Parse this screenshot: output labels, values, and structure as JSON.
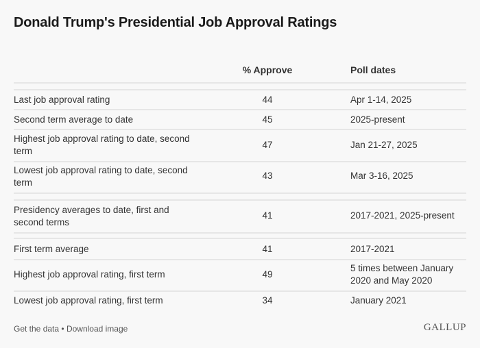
{
  "title": "Donald Trump's Presidential Job Approval Ratings",
  "headers": {
    "approve": "% Approve",
    "dates": "Poll dates"
  },
  "chart_data": {
    "type": "table",
    "columns": [
      "",
      "% Approve",
      "Poll dates"
    ],
    "rows": [
      {
        "label": "Last job approval rating",
        "value": "44",
        "dates": "Apr 1-14, 2025"
      },
      {
        "label": "Second term average to date",
        "value": "45",
        "dates": "2025-present"
      },
      {
        "label": "Highest job approval rating to date, second term",
        "value": "47",
        "dates": "Jan 21-27, 2025"
      },
      {
        "label": "Lowest job approval rating to date, second term",
        "value": "43",
        "dates": "Mar 3-16, 2025"
      },
      {
        "label": "Presidency averages to date, first and second terms",
        "value": "41",
        "dates": "2017-2021, 2025-present"
      },
      {
        "label": "First term average",
        "value": "41",
        "dates": "2017-2021"
      },
      {
        "label": "Highest job approval rating, first term",
        "value": "49",
        "dates": "5 times between January 2020 and May 2020"
      },
      {
        "label": "Lowest job approval rating, first term",
        "value": "34",
        "dates": "January 2021"
      }
    ]
  },
  "footer": {
    "get_data": "Get the data",
    "separator": "•",
    "download": "Download image"
  },
  "logo": "GALLUP"
}
